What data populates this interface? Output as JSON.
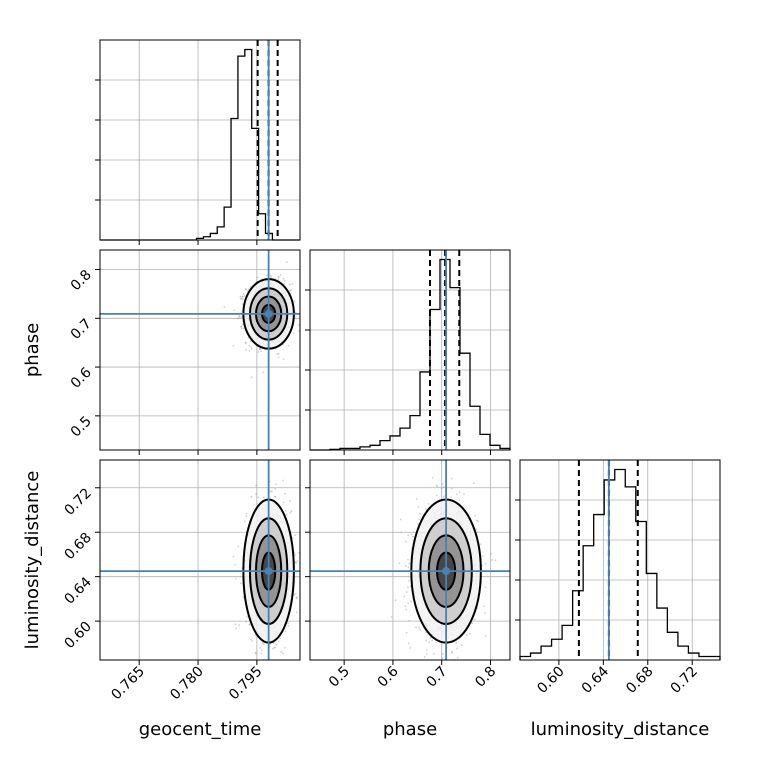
{
  "chart_data": {
    "type": "corner",
    "parameters": [
      "geocent_time",
      "phase",
      "luminosity_distance"
    ],
    "truths": {
      "geocent_time": 0.798,
      "phase": 0.709,
      "luminosity_distance": 0.645
    },
    "ranges": {
      "geocent_time": [
        0.755,
        0.806
      ],
      "phase": [
        0.43,
        0.84
      ],
      "luminosity_distance": [
        0.565,
        0.745
      ]
    },
    "ticks": {
      "geocent_time": [
        0.765,
        0.78,
        0.795
      ],
      "phase": [
        0.5,
        0.6,
        0.7,
        0.8
      ],
      "luminosity_distance": [
        0.6,
        0.64,
        0.68,
        0.72
      ]
    },
    "tick_labels": {
      "geocent_time": [
        "0.765",
        "0.780",
        "0.795"
      ],
      "phase": [
        "0.5",
        "0.6",
        "0.7",
        "0.8"
      ],
      "luminosity_distance": [
        "0.60",
        "0.64",
        "0.68",
        "0.72"
      ]
    },
    "quantiles": {
      "geocent_time": [
        0.7952,
        0.798,
        0.8003
      ],
      "phase": [
        0.676,
        0.707,
        0.736
      ],
      "luminosity_distance": [
        0.618,
        0.645,
        0.671
      ]
    },
    "histograms": {
      "geocent_time": {
        "range": [
          0.755,
          0.806
        ],
        "values": [
          0,
          0,
          0,
          0,
          0,
          0,
          0,
          0,
          0,
          0,
          0,
          0,
          0,
          0,
          0.5,
          1.0,
          2.0,
          4.0,
          10,
          37,
          56,
          58,
          34,
          8,
          2,
          0,
          0,
          0,
          0
        ]
      },
      "phase": {
        "range": [
          0.43,
          0.84
        ],
        "values": [
          0,
          0,
          0.2,
          0.5,
          0.5,
          1,
          1.5,
          3,
          4.5,
          7,
          11,
          25,
          45,
          61,
          52,
          31,
          14,
          5,
          1.5,
          0.5
        ]
      },
      "luminosity_distance": {
        "range": [
          0.565,
          0.745
        ],
        "values": [
          1,
          2,
          4,
          6,
          10,
          20,
          33,
          42,
          52,
          55,
          50,
          40,
          25,
          15,
          8,
          4,
          2,
          1,
          1
        ]
      }
    },
    "scatter_spread": {
      "geocent_time": 0.0028,
      "phase": 0.031,
      "luminosity_distance": 0.028
    },
    "grid": true,
    "colors": {
      "truth": "#4682b4",
      "hist": "#000000",
      "points": "#808080"
    }
  }
}
